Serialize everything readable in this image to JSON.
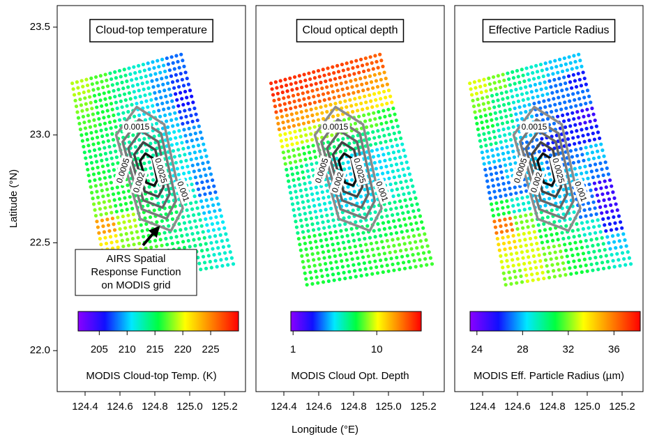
{
  "chart_data": [
    {
      "type": "scatter",
      "title": "Cloud-top temperature",
      "ylabel": "Latitude (°N)",
      "xlim": [
        124.24,
        125.32
      ],
      "ylim": [
        21.81,
        23.6
      ],
      "xticks": [
        124.4,
        124.6,
        124.8,
        {
          "value": 125,
          "label": "125.0"
        },
        125.2
      ],
      "yticks": [
        {
          "value": 22,
          "label": "22.0"
        },
        22.5,
        {
          "value": 23,
          "label": "23.0"
        },
        23.5
      ],
      "colormap": [
        "#8a00ff",
        "#1010ff",
        "#00e8ff",
        "#00ff40",
        "#ffff00",
        "#ff8000",
        "#ff0000"
      ],
      "colorbar": {
        "label": "MODIS Cloud-top Temp. (K)",
        "lim": [
          201.2,
          230
        ],
        "ticks": [
          205,
          210,
          215,
          220,
          225
        ],
        "log": false
      },
      "swath": {
        "lon": [
          124.31,
          124.96,
          125.27,
          124.52
        ],
        "lat": [
          23.25,
          23.39,
          22.39,
          22.29
        ]
      },
      "values": [
        [
          219,
          217,
          214,
          212,
          210,
          208
        ],
        [
          218,
          216,
          214,
          212,
          209,
          207
        ],
        [
          217,
          216,
          213,
          211,
          209,
          206
        ],
        [
          216,
          215,
          214,
          212,
          210,
          207
        ],
        [
          215,
          214,
          213,
          213,
          211,
          209
        ],
        [
          216,
          215,
          214,
          213,
          212,
          210
        ],
        [
          217,
          216,
          214,
          213,
          211,
          209
        ],
        [
          218,
          216,
          215,
          213,
          212,
          208
        ],
        [
          224,
          219,
          216,
          215,
          213,
          210
        ],
        [
          221,
          218,
          216,
          214,
          213,
          211
        ],
        [
          219,
          220,
          217,
          215,
          214,
          212
        ],
        [
          218,
          219,
          217,
          216,
          213,
          212
        ]
      ],
      "contours": [
        {
          "level": 0.0005,
          "color": "#8c8c8c",
          "x": [
            124.578,
            124.696,
            124.854,
            124.96,
            124.893,
            124.716
          ],
          "y": [
            23.0,
            23.13,
            23.049,
            22.659,
            22.556,
            22.611
          ]
        },
        {
          "level": 0.001,
          "color": "#7a7a7a",
          "x": [
            124.615,
            124.709,
            124.836,
            124.921,
            124.867,
            124.725
          ],
          "y": [
            22.968,
            23.072,
            23.007,
            22.695,
            22.612,
            22.656
          ]
        },
        {
          "level": 0.0015,
          "color": "#666666",
          "x": [
            124.648,
            124.721,
            124.819,
            124.885,
            124.844,
            124.734
          ],
          "y": [
            22.938,
            23.019,
            22.969,
            22.727,
            22.663,
            22.697
          ]
        },
        {
          "level": 0.002,
          "color": "#444444",
          "x": [
            124.682,
            124.734,
            124.803,
            124.85,
            124.82,
            124.742
          ],
          "y": [
            22.909,
            22.966,
            22.931,
            22.759,
            22.714,
            22.738
          ]
        },
        {
          "level": 0.0025,
          "color": "#111111",
          "x": [
            124.715,
            124.746,
            124.787,
            124.814,
            124.797,
            124.751
          ],
          "y": [
            22.88,
            22.914,
            22.893,
            22.791,
            22.765,
            22.779
          ]
        }
      ],
      "annotation": [
        "AIRS Spatial",
        "Response Function",
        "on MODIS grid"
      ]
    },
    {
      "type": "scatter",
      "title": "Cloud optical depth",
      "xlabel": "Longitude (°E)",
      "xlim": [
        124.24,
        125.32
      ],
      "ylim": [
        21.81,
        23.6
      ],
      "xticks": [
        124.4,
        124.6,
        124.8,
        {
          "value": 125,
          "label": "125.0"
        },
        125.2
      ],
      "colormap": [
        "#8a00ff",
        "#1010ff",
        "#00e8ff",
        "#00ff40",
        "#ffff00",
        "#ff8000",
        "#ff0000"
      ],
      "colorbar": {
        "label": "MODIS Cloud Opt. Depth",
        "lim": [
          0.94,
          34
        ],
        "ticks": [
          1,
          10
        ],
        "log": true
      },
      "swath": {
        "lon": [
          124.31,
          124.96,
          125.27,
          124.52
        ],
        "lat": [
          23.25,
          23.39,
          22.39,
          22.29
        ]
      },
      "values": [
        [
          28,
          27,
          26,
          25,
          24,
          22
        ],
        [
          24,
          23,
          22,
          20,
          18,
          16
        ],
        [
          17,
          16,
          14,
          13,
          12,
          11
        ],
        [
          10,
          9,
          8,
          7,
          7,
          6
        ],
        [
          7,
          6,
          5,
          4.5,
          4.5,
          4.5
        ],
        [
          5,
          4,
          3.5,
          3,
          3,
          3.5
        ],
        [
          4,
          3.5,
          3,
          3,
          3,
          3.5
        ],
        [
          4,
          3.5,
          3,
          3,
          3.5,
          4
        ],
        [
          4.5,
          4,
          4,
          4,
          4.5,
          5
        ],
        [
          6,
          5.5,
          5,
          5,
          5.5,
          6
        ],
        [
          6.5,
          6,
          6,
          6.5,
          7,
          7
        ],
        [
          6,
          5.5,
          5.5,
          6,
          6,
          6.5
        ]
      ],
      "contours": [
        {
          "level": 0.0005,
          "color": "#8c8c8c",
          "x": [
            124.578,
            124.696,
            124.854,
            124.96,
            124.893,
            124.716
          ],
          "y": [
            23.0,
            23.13,
            23.049,
            22.659,
            22.556,
            22.611
          ]
        },
        {
          "level": 0.001,
          "color": "#7a7a7a",
          "x": [
            124.615,
            124.709,
            124.836,
            124.921,
            124.867,
            124.725
          ],
          "y": [
            22.968,
            23.072,
            23.007,
            22.695,
            22.612,
            22.656
          ]
        },
        {
          "level": 0.0015,
          "color": "#666666",
          "x": [
            124.648,
            124.721,
            124.819,
            124.885,
            124.844,
            124.734
          ],
          "y": [
            22.938,
            23.019,
            22.969,
            22.727,
            22.663,
            22.697
          ]
        },
        {
          "level": 0.002,
          "color": "#444444",
          "x": [
            124.682,
            124.734,
            124.803,
            124.85,
            124.82,
            124.742
          ],
          "y": [
            22.909,
            22.966,
            22.931,
            22.759,
            22.714,
            22.738
          ]
        },
        {
          "level": 0.0025,
          "color": "#111111",
          "x": [
            124.715,
            124.746,
            124.787,
            124.814,
            124.797,
            124.751
          ],
          "y": [
            22.88,
            22.914,
            22.893,
            22.791,
            22.765,
            22.779
          ]
        }
      ]
    },
    {
      "type": "scatter",
      "title": "Effective Particle Radius",
      "xlim": [
        124.24,
        125.32
      ],
      "ylim": [
        21.81,
        23.6
      ],
      "xticks": [
        124.4,
        124.6,
        124.8,
        {
          "value": 125,
          "label": "125.0"
        },
        125.2
      ],
      "colormap": [
        "#8a00ff",
        "#1010ff",
        "#00e8ff",
        "#00ff40",
        "#ffff00",
        "#ff8000",
        "#ff0000"
      ],
      "colorbar": {
        "label": "MODIS Eff. Particle Radius (µm)",
        "lim": [
          23.4,
          38.3
        ],
        "ticks": [
          24,
          28,
          32,
          36
        ],
        "log": false
      },
      "swath": {
        "lon": [
          124.31,
          124.96,
          125.27,
          124.52
        ],
        "lat": [
          23.25,
          23.39,
          22.39,
          22.29
        ]
      },
      "values": [
        [
          33,
          32,
          30,
          29,
          28,
          28
        ],
        [
          32,
          30,
          29,
          28,
          27,
          26
        ],
        [
          31,
          30,
          28,
          27,
          27,
          27
        ],
        [
          30,
          29,
          28,
          27,
          26,
          25
        ],
        [
          28,
          28,
          27,
          26,
          26,
          26
        ],
        [
          27,
          28,
          28,
          27,
          27,
          28
        ],
        [
          27,
          27,
          28,
          28,
          28,
          27
        ],
        [
          31,
          29,
          28,
          28,
          27,
          25
        ],
        [
          36,
          32,
          30,
          29,
          27,
          25
        ],
        [
          34,
          33,
          31,
          30,
          29,
          26
        ],
        [
          33,
          33,
          32,
          31,
          30,
          28
        ],
        [
          32,
          33,
          32,
          31,
          30,
          29
        ]
      ],
      "contours": [
        {
          "level": 0.0005,
          "color": "#8c8c8c",
          "x": [
            124.578,
            124.696,
            124.854,
            124.96,
            124.893,
            124.716
          ],
          "y": [
            23.0,
            23.13,
            23.049,
            22.659,
            22.556,
            22.611
          ]
        },
        {
          "level": 0.001,
          "color": "#7a7a7a",
          "x": [
            124.615,
            124.709,
            124.836,
            124.921,
            124.867,
            124.725
          ],
          "y": [
            22.968,
            23.072,
            23.007,
            22.695,
            22.612,
            22.656
          ]
        },
        {
          "level": 0.0015,
          "color": "#666666",
          "x": [
            124.648,
            124.721,
            124.819,
            124.885,
            124.844,
            124.734
          ],
          "y": [
            22.938,
            23.019,
            22.969,
            22.727,
            22.663,
            22.697
          ]
        },
        {
          "level": 0.002,
          "color": "#444444",
          "x": [
            124.682,
            124.734,
            124.803,
            124.85,
            124.82,
            124.742
          ],
          "y": [
            22.909,
            22.966,
            22.931,
            22.759,
            22.714,
            22.738
          ]
        },
        {
          "level": 0.0025,
          "color": "#111111",
          "x": [
            124.715,
            124.746,
            124.787,
            124.814,
            124.797,
            124.751
          ],
          "y": [
            22.88,
            22.914,
            22.893,
            22.791,
            22.765,
            22.779
          ]
        }
      ]
    }
  ]
}
